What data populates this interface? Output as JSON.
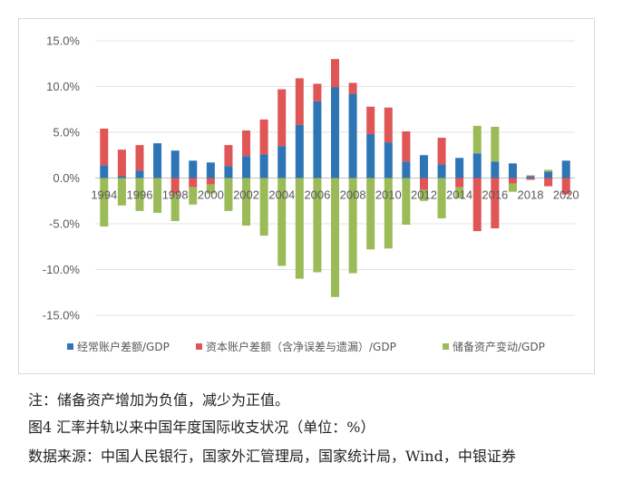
{
  "chart_data": {
    "type": "bar",
    "stacked": true,
    "categories": [
      "1994",
      "1995",
      "1996",
      "1997",
      "1998",
      "1999",
      "2000",
      "2001",
      "2002",
      "2003",
      "2004",
      "2005",
      "2006",
      "2007",
      "2008",
      "2009",
      "2010",
      "2011",
      "2012",
      "2013",
      "2014",
      "2015",
      "2016",
      "2017",
      "2018",
      "2019",
      "2020"
    ],
    "x_tick_labels": [
      "1994",
      "1996",
      "1998",
      "2000",
      "2002",
      "2004",
      "2006",
      "2008",
      "2010",
      "2012",
      "2014",
      "2016",
      "2018",
      "2020"
    ],
    "ylim": [
      -15,
      15
    ],
    "yticks": [
      -15,
      -10,
      -5,
      0,
      5,
      10,
      15
    ],
    "ytick_labels": [
      "-15.0%",
      "-10.0%",
      "-5.0%",
      "0.0%",
      "5.0%",
      "10.0%",
      "15.0%"
    ],
    "grid": true,
    "legend_position": "bottom",
    "series": [
      {
        "name": "经常账户差额/GDP",
        "color": "#2e75b6",
        "values": [
          1.4,
          0.2,
          0.8,
          3.8,
          3.0,
          1.9,
          1.7,
          1.3,
          2.4,
          2.6,
          3.5,
          5.8,
          8.4,
          9.9,
          9.2,
          4.8,
          3.9,
          1.8,
          2.5,
          1.5,
          2.2,
          2.7,
          1.8,
          1.6,
          0.2,
          0.7,
          1.9
        ]
      },
      {
        "name": "资本账户差额（含净误差与遗漏）/GDP",
        "color": "#e05555",
        "values": [
          4.0,
          2.9,
          2.8,
          0.0,
          -1.7,
          -1.0,
          -0.7,
          2.3,
          2.8,
          3.8,
          6.2,
          5.1,
          1.9,
          3.1,
          1.2,
          3.0,
          3.8,
          3.3,
          -1.3,
          2.9,
          -1.0,
          -5.8,
          -5.5,
          -0.6,
          -0.2,
          -0.9,
          -1.8
        ]
      },
      {
        "name": "储备资产变动/GDP",
        "color": "#9bbb59",
        "values": [
          -5.3,
          -3.0,
          -3.6,
          -3.8,
          -3.0,
          -1.9,
          -1.0,
          -3.6,
          -5.2,
          -6.3,
          -9.6,
          -11.0,
          -10.3,
          -13.0,
          -10.4,
          -7.8,
          -7.7,
          -5.1,
          -1.2,
          -4.4,
          -1.2,
          3.0,
          3.8,
          -0.9,
          0.1,
          0.2,
          0.0
        ]
      }
    ]
  },
  "footer": {
    "note": "注：储备资产增加为负值，减少为正值。",
    "caption": "图4 汇率并轨以来中国年度国际收支状况（单位：%）",
    "source": "数据来源：中国人民银行，国家外汇管理局，国家统计局，Wind，中银证券"
  }
}
